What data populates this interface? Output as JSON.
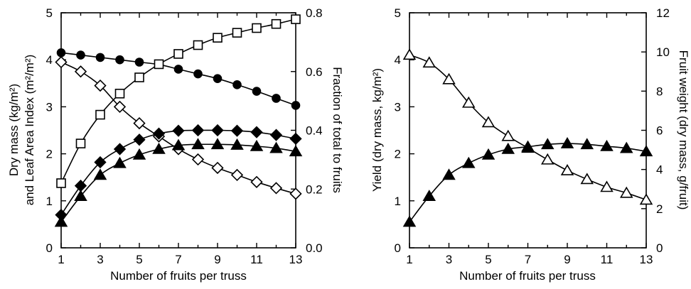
{
  "chart_data": [
    {
      "type": "line",
      "xlabel": "Number of fruits per truss",
      "ylabel_left_line1": "Dry mass (kg/m²)",
      "ylabel_left_line2": "and Leaf Area Index (m²/m²)",
      "ylabel_right": "Fraction of total to fruits",
      "xlim": [
        1,
        13
      ],
      "xticks": [
        "1",
        "3",
        "5",
        "7",
        "9",
        "11",
        "13"
      ],
      "ylim_left": [
        0,
        5
      ],
      "yticks_left": [
        "0",
        "1",
        "2",
        "3",
        "4",
        "5"
      ],
      "ylim_right": [
        0,
        0.8
      ],
      "yticks_right": [
        "0.0",
        "0.2",
        "0.4",
        "0.6",
        "0.8"
      ],
      "x": [
        1,
        2,
        3,
        4,
        5,
        6,
        7,
        8,
        9,
        10,
        11,
        12,
        13
      ],
      "series": [
        {
          "marker": "circle-filled",
          "axis": "left",
          "color": "#000000",
          "values": [
            4.15,
            4.1,
            4.05,
            4.0,
            3.95,
            3.9,
            3.8,
            3.7,
            3.6,
            3.47,
            3.33,
            3.18,
            3.03
          ]
        },
        {
          "marker": "square-open",
          "axis": "right",
          "color": "#000000",
          "values": [
            0.22,
            0.355,
            0.453,
            0.525,
            0.58,
            0.625,
            0.66,
            0.69,
            0.715,
            0.732,
            0.748,
            0.762,
            0.778
          ]
        },
        {
          "marker": "diamond-open",
          "axis": "left",
          "color": "#000000",
          "values": [
            3.95,
            3.75,
            3.45,
            3.0,
            2.65,
            2.37,
            2.1,
            1.88,
            1.7,
            1.55,
            1.4,
            1.27,
            1.15
          ]
        },
        {
          "marker": "diamond-filled",
          "axis": "left",
          "color": "#000000",
          "values": [
            0.7,
            1.32,
            1.82,
            2.1,
            2.3,
            2.43,
            2.49,
            2.5,
            2.5,
            2.49,
            2.46,
            2.4,
            2.32
          ]
        },
        {
          "marker": "triangle-filled",
          "axis": "left",
          "color": "#000000",
          "values": [
            0.55,
            1.1,
            1.55,
            1.8,
            1.98,
            2.1,
            2.18,
            2.2,
            2.2,
            2.19,
            2.16,
            2.12,
            2.05
          ]
        }
      ]
    },
    {
      "type": "line",
      "xlabel": "Number of fruits per truss",
      "ylabel_left": "Yield (dry mass, kg/m²)",
      "ylabel_right": "Fruit weight (dry mass, g/fruit)",
      "xlim": [
        1,
        13
      ],
      "xticks": [
        "1",
        "3",
        "5",
        "7",
        "9",
        "11",
        "13"
      ],
      "ylim_left": [
        0,
        5
      ],
      "yticks_left": [
        "0",
        "1",
        "2",
        "3",
        "4",
        "5"
      ],
      "ylim_right": [
        0,
        12
      ],
      "yticks_right": [
        "0",
        "2",
        "4",
        "6",
        "8",
        "10",
        "12"
      ],
      "x": [
        1,
        2,
        3,
        4,
        5,
        6,
        7,
        8,
        9,
        10,
        11,
        12,
        13
      ],
      "series": [
        {
          "marker": "triangle-open",
          "axis": "right",
          "color": "#000000",
          "values": [
            9.85,
            9.45,
            8.6,
            7.4,
            6.4,
            5.7,
            5.1,
            4.5,
            3.95,
            3.5,
            3.1,
            2.8,
            2.45
          ]
        },
        {
          "marker": "triangle-filled",
          "axis": "left",
          "color": "#000000",
          "values": [
            0.55,
            1.1,
            1.55,
            1.8,
            1.98,
            2.1,
            2.15,
            2.2,
            2.22,
            2.2,
            2.16,
            2.12,
            2.05
          ]
        }
      ]
    }
  ]
}
